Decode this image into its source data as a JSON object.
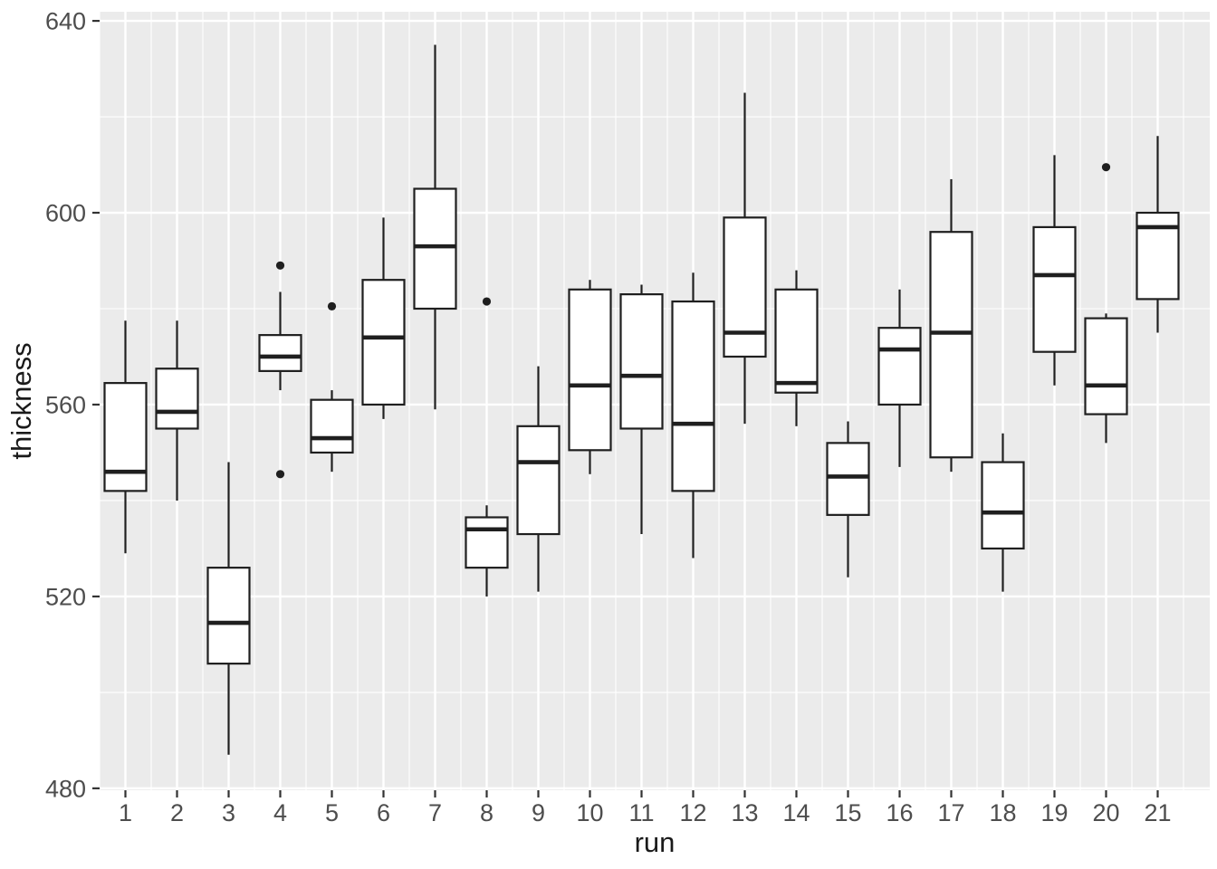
{
  "figure": {
    "bg": "#FFFFFF"
  },
  "panel": {
    "bg": "#EBEBEB",
    "grid_color": "#FFFFFF"
  },
  "style": {
    "box_fill": "#FFFFFF",
    "stroke_color": "#1F1F1F",
    "tick_label_color": "#4D4D4D",
    "axis_title_color": "#1A1A1A",
    "tick_mark_color": "#333333"
  },
  "chart_data": {
    "type": "boxplot",
    "title": "",
    "xlabel": "run",
    "ylabel": "thickness",
    "ylim": [
      479.6,
      641.9
    ],
    "y_major_ticks": [
      480,
      520,
      560,
      600,
      640
    ],
    "y_minor_gridlines": [
      500,
      540,
      580,
      620
    ],
    "grid": true,
    "legend": false,
    "categories": [
      1,
      2,
      3,
      4,
      5,
      6,
      7,
      8,
      9,
      10,
      11,
      12,
      13,
      14,
      15,
      16,
      17,
      18,
      19,
      20,
      21
    ],
    "runs": [
      {
        "run": 1,
        "low": 529,
        "q1": 542,
        "median": 546,
        "q3": 564.5,
        "high": 577.5,
        "outliers": []
      },
      {
        "run": 2,
        "low": 540,
        "q1": 555,
        "median": 558.5,
        "q3": 567.5,
        "high": 577.5,
        "outliers": []
      },
      {
        "run": 3,
        "low": 487,
        "q1": 506,
        "median": 514.5,
        "q3": 526,
        "high": 548,
        "outliers": []
      },
      {
        "run": 4,
        "low": 563,
        "q1": 567,
        "median": 570,
        "q3": 574.5,
        "high": 583.5,
        "outliers": [
          589,
          545.5
        ]
      },
      {
        "run": 5,
        "low": 546,
        "q1": 550,
        "median": 553,
        "q3": 561,
        "high": 563,
        "outliers": [
          580.5
        ]
      },
      {
        "run": 6,
        "low": 557,
        "q1": 560,
        "median": 574,
        "q3": 586,
        "high": 599,
        "outliers": []
      },
      {
        "run": 7,
        "low": 559,
        "q1": 580,
        "median": 593,
        "q3": 605,
        "high": 635,
        "outliers": []
      },
      {
        "run": 8,
        "low": 520,
        "q1": 526,
        "median": 534,
        "q3": 536.5,
        "high": 539,
        "outliers": [
          581.5
        ]
      },
      {
        "run": 9,
        "low": 521,
        "q1": 533,
        "median": 548,
        "q3": 555.5,
        "high": 568,
        "outliers": []
      },
      {
        "run": 10,
        "low": 545.5,
        "q1": 550.5,
        "median": 564,
        "q3": 584,
        "high": 586,
        "outliers": []
      },
      {
        "run": 11,
        "low": 533,
        "q1": 555,
        "median": 566,
        "q3": 583,
        "high": 585,
        "outliers": []
      },
      {
        "run": 12,
        "low": 528,
        "q1": 542,
        "median": 556,
        "q3": 581.5,
        "high": 587.5,
        "outliers": []
      },
      {
        "run": 13,
        "low": 556,
        "q1": 570,
        "median": 575,
        "q3": 599,
        "high": 625,
        "outliers": []
      },
      {
        "run": 14,
        "low": 555.5,
        "q1": 562.5,
        "median": 564.5,
        "q3": 584,
        "high": 588,
        "outliers": []
      },
      {
        "run": 15,
        "low": 524,
        "q1": 537,
        "median": 545,
        "q3": 552,
        "high": 556.5,
        "outliers": []
      },
      {
        "run": 16,
        "low": 547,
        "q1": 560,
        "median": 571.5,
        "q3": 576,
        "high": 584,
        "outliers": []
      },
      {
        "run": 17,
        "low": 546,
        "q1": 549,
        "median": 575,
        "q3": 596,
        "high": 607,
        "outliers": []
      },
      {
        "run": 18,
        "low": 521,
        "q1": 530,
        "median": 537.5,
        "q3": 548,
        "high": 554,
        "outliers": []
      },
      {
        "run": 19,
        "low": 564,
        "q1": 571,
        "median": 587,
        "q3": 597,
        "high": 612,
        "outliers": []
      },
      {
        "run": 20,
        "low": 552,
        "q1": 558,
        "median": 564,
        "q3": 578,
        "high": 579,
        "outliers": [
          609.5
        ]
      },
      {
        "run": 21,
        "low": 575,
        "q1": 582,
        "median": 597,
        "q3": 600,
        "high": 616,
        "outliers": []
      }
    ]
  }
}
